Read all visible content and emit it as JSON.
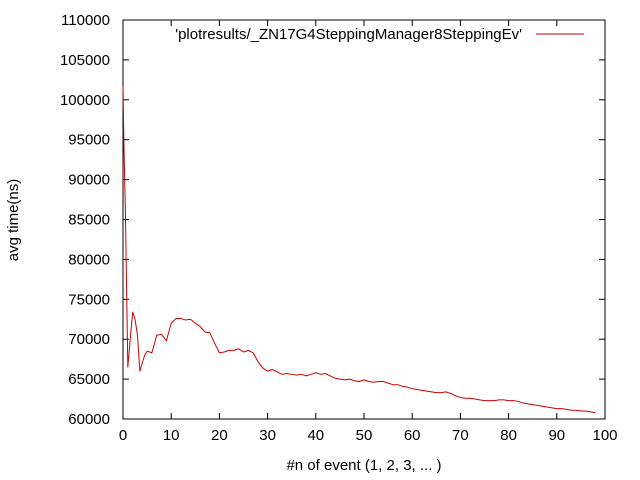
{
  "chart_data": {
    "type": "line",
    "title": "",
    "xlabel": "#n of event (1, 2, 3, ... )",
    "ylabel": "avg time(ns)",
    "xlim": [
      0,
      100
    ],
    "ylim": [
      60000,
      110000
    ],
    "x_ticks": [
      0,
      10,
      20,
      30,
      40,
      50,
      60,
      70,
      80,
      90,
      100
    ],
    "y_ticks": [
      60000,
      65000,
      70000,
      75000,
      80000,
      85000,
      90000,
      95000,
      100000,
      105000,
      110000
    ],
    "grid": false,
    "legend_position": "top-right",
    "series": [
      {
        "name": "'plotresults/_ZN17G4SteppingManager8SteppingEv'",
        "color": "#cc0000",
        "x": [
          0,
          0.2,
          0.5,
          1,
          1.5,
          2,
          2.5,
          3,
          3.5,
          4,
          4.5,
          5,
          6,
          7,
          8,
          9,
          10,
          11,
          12,
          13,
          14,
          15,
          16,
          17,
          18,
          19,
          20,
          21,
          22,
          23,
          24,
          25,
          26,
          27,
          28,
          29,
          30,
          31,
          32,
          33,
          34,
          35,
          36,
          37,
          38,
          39,
          40,
          41,
          42,
          43,
          44,
          45,
          46,
          47,
          48,
          49,
          50,
          51,
          52,
          53,
          54,
          55,
          56,
          57,
          58,
          59,
          60,
          61,
          62,
          63,
          64,
          65,
          66,
          67,
          68,
          69,
          70,
          71,
          72,
          73,
          74,
          75,
          76,
          77,
          78,
          79,
          80,
          81,
          82,
          83,
          84,
          85,
          86,
          87,
          88,
          89,
          90,
          91,
          92,
          93,
          94,
          95,
          96,
          97,
          98
        ],
        "y": [
          101700,
          94000,
          86000,
          66500,
          70000,
          73400,
          72500,
          70500,
          66000,
          67000,
          68000,
          68500,
          68300,
          70500,
          70600,
          69800,
          72000,
          72600,
          72600,
          72400,
          72500,
          72000,
          71600,
          70900,
          70800,
          69500,
          68300,
          68400,
          68600,
          68600,
          68800,
          68400,
          68600,
          68300,
          67200,
          66400,
          66000,
          66200,
          65900,
          65600,
          65700,
          65600,
          65500,
          65600,
          65400,
          65600,
          65800,
          65600,
          65700,
          65400,
          65100,
          65000,
          64900,
          65000,
          64800,
          64700,
          64900,
          64700,
          64600,
          64700,
          64700,
          64500,
          64300,
          64300,
          64100,
          64000,
          63800,
          63700,
          63600,
          63500,
          63400,
          63300,
          63300,
          63400,
          63200,
          62900,
          62700,
          62600,
          62600,
          62500,
          62400,
          62300,
          62300,
          62300,
          62400,
          62400,
          62300,
          62300,
          62200,
          62000,
          61900,
          61800,
          61700,
          61600,
          61500,
          61400,
          61300,
          61300,
          61200,
          61100,
          61100,
          61000,
          61000,
          60900,
          60800
        ]
      }
    ]
  }
}
